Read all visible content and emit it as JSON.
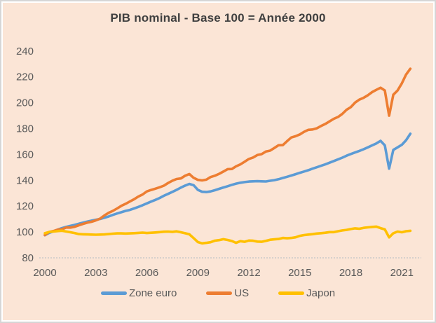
{
  "title": "PIB nominal - Base 100 = Année 2000",
  "background_color": "#fbe5d6",
  "title_color": "#404040",
  "axis_text_color": "#595959",
  "axis_line_color": "#c9c9c9",
  "chart_data": {
    "type": "line",
    "title": "PIB nominal - Base 100 = Année 2000",
    "xlabel": "",
    "ylabel": "",
    "frequency": "quarterly",
    "x_start_year": 2000,
    "x_end": "2021-Q3",
    "xlim": [
      2000,
      2022
    ],
    "ylim": [
      80,
      240
    ],
    "y_ticks": [
      80,
      100,
      120,
      140,
      160,
      180,
      200,
      220,
      240
    ],
    "x_tick_years": [
      2000,
      2003,
      2006,
      2009,
      2012,
      2015,
      2018,
      2021
    ],
    "x_tick_labels": [
      "2000",
      "2003",
      "2006",
      "2009",
      "2012",
      "2015",
      "2018",
      "2021"
    ],
    "grid": "off",
    "legend_position": "bottom",
    "series": [
      {
        "name": "Zone euro",
        "color": "#5B9BD5",
        "values": [
          97.5,
          99.3,
          100.5,
          101.8,
          103.0,
          103.9,
          104.7,
          105.5,
          106.4,
          107.2,
          108.0,
          108.8,
          109.5,
          110.1,
          111.0,
          112.0,
          113.2,
          114.3,
          115.3,
          116.3,
          117.1,
          118.2,
          119.4,
          120.7,
          122.1,
          123.5,
          124.8,
          126.3,
          128.0,
          129.5,
          131.0,
          132.6,
          134.3,
          135.9,
          137.2,
          136.2,
          132.6,
          131.1,
          130.9,
          131.4,
          132.3,
          133.4,
          134.4,
          135.4,
          136.5,
          137.4,
          138.1,
          138.6,
          139.0,
          139.2,
          139.3,
          139.2,
          139.1,
          139.6,
          140.1,
          140.8,
          141.8,
          142.7,
          143.7,
          144.7,
          145.8,
          146.8,
          147.8,
          149.0,
          150.1,
          151.2,
          152.3,
          153.6,
          154.9,
          156.2,
          157.5,
          159.0,
          160.3,
          161.5,
          162.7,
          164.0,
          165.5,
          167.0,
          168.5,
          170.5,
          167.0,
          149.0,
          163.5,
          165.5,
          167.5,
          171.0,
          176.0
        ]
      },
      {
        "name": "US",
        "color": "#ED7D31",
        "values": [
          97.6,
          100.0,
          100.7,
          101.8,
          102.1,
          103.4,
          103.4,
          104.0,
          105.2,
          106.3,
          107.2,
          107.9,
          109.0,
          110.3,
          112.8,
          114.8,
          116.3,
          118.2,
          120.2,
          121.8,
          123.6,
          125.3,
          127.4,
          129.0,
          131.4,
          132.5,
          133.5,
          134.6,
          135.8,
          137.9,
          139.7,
          141.0,
          141.4,
          143.5,
          144.8,
          141.9,
          140.3,
          139.9,
          140.5,
          142.5,
          143.5,
          145.0,
          146.7,
          148.6,
          148.7,
          150.8,
          152.3,
          154.3,
          156.5,
          157.6,
          159.5,
          160.2,
          162.2,
          162.9,
          165.0,
          167.1,
          167.2,
          170.3,
          173.1,
          174.1,
          175.5,
          177.5,
          179.0,
          179.3,
          180.2,
          182.0,
          183.6,
          185.6,
          187.6,
          189.0,
          191.4,
          194.5,
          196.6,
          200.1,
          202.4,
          203.8,
          205.8,
          208.2,
          210.0,
          211.6,
          209.5,
          190.0,
          206.2,
          209.5,
          215.0,
          221.8,
          226.3
        ]
      },
      {
        "name": "Japon",
        "color": "#FFC000",
        "values": [
          99.0,
          100.0,
          100.3,
          100.7,
          101.0,
          100.4,
          99.8,
          99.2,
          98.4,
          98.2,
          98.1,
          98.0,
          97.9,
          98.0,
          98.1,
          98.4,
          98.7,
          98.9,
          98.9,
          98.8,
          98.9,
          99.1,
          99.3,
          99.5,
          99.2,
          99.4,
          99.6,
          99.9,
          100.2,
          100.3,
          100.1,
          100.5,
          99.8,
          99.0,
          98.2,
          95.3,
          92.2,
          91.2,
          91.6,
          92.1,
          93.3,
          93.7,
          94.4,
          93.8,
          93.0,
          91.6,
          92.9,
          92.4,
          93.4,
          93.2,
          92.6,
          92.4,
          93.1,
          94.0,
          94.3,
          94.6,
          95.4,
          95.1,
          95.4,
          95.9,
          97.0,
          97.6,
          98.0,
          98.3,
          98.8,
          99.1,
          99.4,
          99.9,
          99.9,
          100.6,
          101.2,
          101.6,
          102.3,
          102.8,
          102.5,
          103.2,
          103.6,
          103.9,
          104.2,
          103.0,
          102.0,
          95.8,
          99.0,
          100.3,
          99.8,
          100.6,
          100.9
        ]
      }
    ]
  }
}
